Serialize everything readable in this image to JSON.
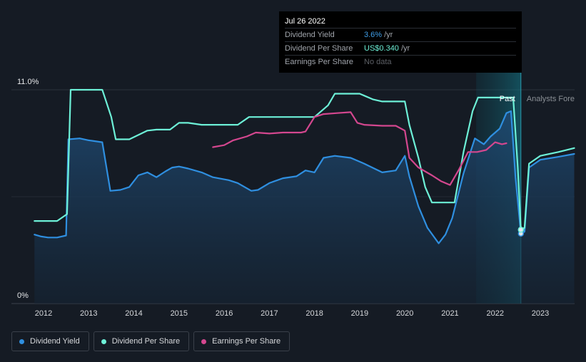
{
  "tooltip": {
    "date": "Jul 26 2022",
    "rows": [
      {
        "label": "Dividend Yield",
        "value": "3.6%",
        "unit": "/yr"
      },
      {
        "label": "Dividend Per Share",
        "value": "US$0.340",
        "unit": "/yr"
      },
      {
        "label": "Earnings Per Share",
        "value": "No data",
        "unit": ""
      }
    ]
  },
  "regions": {
    "past_label": "Past",
    "forecast_label": "Analysts Fore"
  },
  "legend": [
    {
      "label": "Dividend Yield",
      "color": "#2f8fe0"
    },
    {
      "label": "Dividend Per Share",
      "color": "#6df0d7"
    },
    {
      "label": "Earnings Per Share",
      "color": "#d4478f"
    }
  ],
  "chart_data": {
    "type": "line",
    "y_axis_ticks": [
      "11.0%",
      "0%"
    ],
    "ylim": [
      0,
      11
    ],
    "xlim": [
      2011.8,
      2023.75
    ],
    "x_ticks": [
      "2012",
      "2013",
      "2014",
      "2015",
      "2016",
      "2017",
      "2018",
      "2019",
      "2020",
      "2021",
      "2022",
      "2023"
    ],
    "highlight_range": [
      2021.58,
      2022.57
    ],
    "series": [
      {
        "name": "Dividend Yield",
        "color": "#2f8fe0",
        "area": true,
        "x": [
          2011.8,
          2011.95,
          2012.1,
          2012.3,
          2012.5,
          2012.55,
          2012.8,
          2013.0,
          2013.3,
          2013.48,
          2013.7,
          2013.9,
          2014.1,
          2014.3,
          2014.5,
          2014.7,
          2014.85,
          2015.0,
          2015.2,
          2015.5,
          2015.75,
          2016.1,
          2016.3,
          2016.6,
          2016.75,
          2017.0,
          2017.3,
          2017.6,
          2017.8,
          2018.0,
          2018.2,
          2018.45,
          2018.8,
          2019.1,
          2019.5,
          2019.8,
          2020.0,
          2020.1,
          2020.3,
          2020.5,
          2020.75,
          2020.9,
          2021.05,
          2021.3,
          2021.55,
          2021.75,
          2021.9,
          2022.1,
          2022.25,
          2022.35,
          2022.45,
          2022.57,
          2022.65,
          2022.75,
          2023.0,
          2023.4,
          2023.75
        ],
        "values": [
          3.55,
          3.45,
          3.4,
          3.4,
          3.5,
          8.45,
          8.5,
          8.4,
          8.3,
          5.8,
          5.85,
          6.0,
          6.6,
          6.75,
          6.5,
          6.8,
          7.0,
          7.05,
          6.95,
          6.75,
          6.5,
          6.35,
          6.2,
          5.8,
          5.85,
          6.2,
          6.45,
          6.55,
          6.85,
          6.75,
          7.5,
          7.6,
          7.5,
          7.2,
          6.75,
          6.85,
          7.6,
          6.55,
          5.0,
          3.9,
          3.1,
          3.55,
          4.4,
          6.7,
          8.5,
          8.2,
          8.6,
          9.0,
          9.8,
          9.9,
          6.5,
          3.6,
          3.7,
          7.0,
          7.4,
          7.55,
          7.7
        ]
      },
      {
        "name": "Dividend Per Share",
        "color": "#6df0d7",
        "area": false,
        "x": [
          2011.8,
          2012.3,
          2012.52,
          2012.6,
          2013.3,
          2013.5,
          2013.6,
          2013.9,
          2014.3,
          2014.5,
          2014.8,
          2015.0,
          2015.2,
          2015.5,
          2016.3,
          2016.55,
          2017.0,
          2017.5,
          2018.0,
          2018.3,
          2018.45,
          2019.0,
          2019.3,
          2019.5,
          2020.0,
          2020.1,
          2020.3,
          2020.45,
          2020.6,
          2021.1,
          2021.3,
          2021.5,
          2021.62,
          2022.4,
          2022.5,
          2022.57,
          2022.65,
          2022.75,
          2023.0,
          2023.4,
          2023.75
        ],
        "values": [
          4.25,
          4.25,
          4.6,
          11.0,
          11.0,
          9.6,
          8.45,
          8.45,
          8.9,
          8.95,
          8.95,
          9.3,
          9.3,
          9.2,
          9.2,
          9.6,
          9.6,
          9.6,
          9.6,
          10.2,
          10.8,
          10.8,
          10.5,
          10.4,
          10.4,
          9.2,
          7.5,
          6.0,
          5.2,
          5.2,
          7.8,
          9.9,
          10.6,
          10.6,
          7.0,
          3.8,
          3.9,
          7.2,
          7.6,
          7.8,
          8.0
        ]
      },
      {
        "name": "Earnings Per Share",
        "color": "#d4478f",
        "area": false,
        "x": [
          2015.75,
          2016.0,
          2016.2,
          2016.5,
          2016.7,
          2017.0,
          2017.3,
          2017.7,
          2017.8,
          2018.0,
          2018.2,
          2018.5,
          2018.8,
          2018.95,
          2019.1,
          2019.5,
          2019.8,
          2020.0,
          2020.1,
          2020.3,
          2020.6,
          2020.8,
          2021.0,
          2021.2,
          2021.4,
          2021.6,
          2021.8,
          2022.0,
          2022.15,
          2022.25
        ],
        "values": [
          8.05,
          8.15,
          8.4,
          8.6,
          8.8,
          8.75,
          8.8,
          8.8,
          8.85,
          9.6,
          9.75,
          9.8,
          9.85,
          9.3,
          9.2,
          9.15,
          9.15,
          8.9,
          7.5,
          7.0,
          6.6,
          6.3,
          6.1,
          6.9,
          7.8,
          7.8,
          7.9,
          8.3,
          8.2,
          8.25
        ]
      }
    ],
    "markers": [
      {
        "series": "Dividend Yield",
        "x": 2022.57,
        "value": 3.6
      },
      {
        "series": "Dividend Per Share",
        "x": 2022.57,
        "value": 3.8
      }
    ]
  }
}
